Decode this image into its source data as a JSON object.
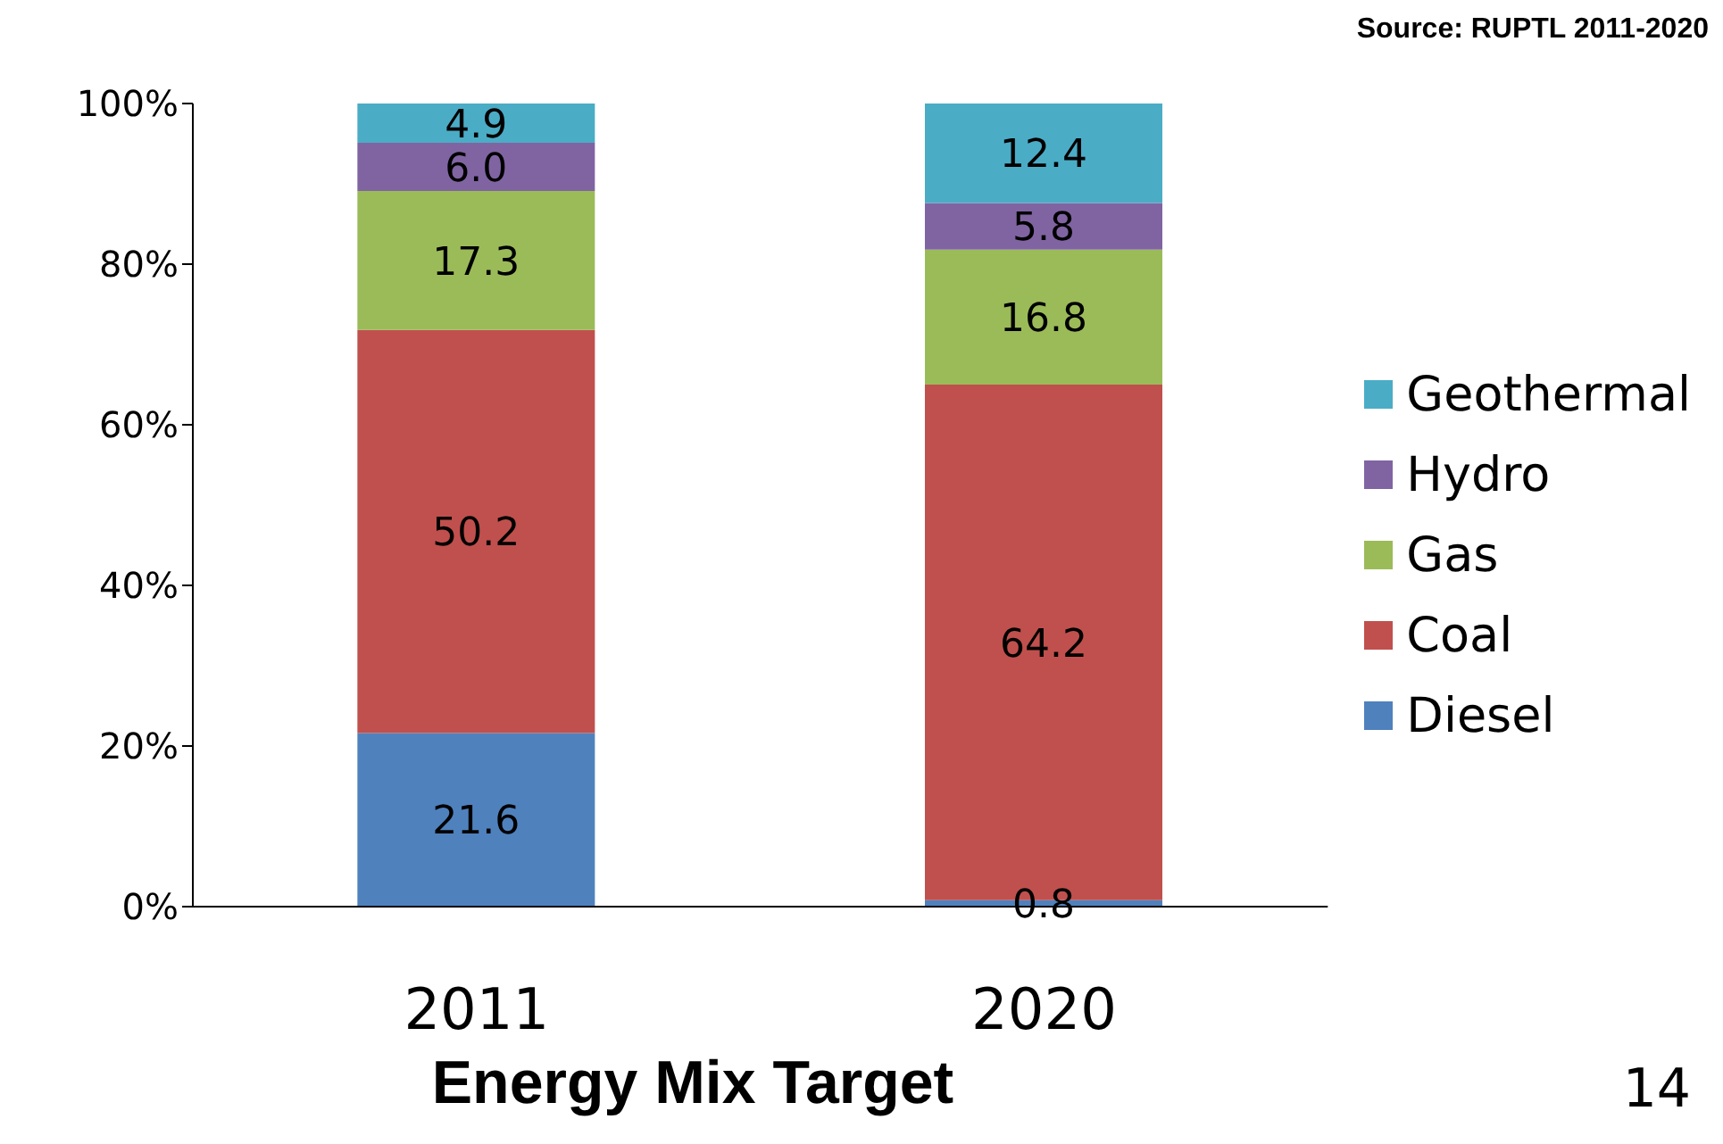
{
  "chart_data": {
    "type": "bar",
    "title": "Energy Mix Target",
    "stacked": true,
    "categories": [
      "2011",
      "2020"
    ],
    "series": [
      {
        "name": "Diesel",
        "color": "#4f81bd",
        "values": [
          21.6,
          0.8
        ],
        "value_labels": [
          "21.6",
          "0.8"
        ]
      },
      {
        "name": "Coal",
        "color": "#c0504d",
        "values": [
          50.2,
          64.2
        ],
        "value_labels": [
          "50.2",
          "64.2"
        ]
      },
      {
        "name": "Gas",
        "color": "#9bbb59",
        "values": [
          17.3,
          16.8
        ],
        "value_labels": [
          "17.3",
          "16.8"
        ]
      },
      {
        "name": "Hydro",
        "color": "#8064a2",
        "values": [
          6.0,
          5.8
        ],
        "value_labels": [
          "6.0",
          "5.8"
        ]
      },
      {
        "name": "Geothermal",
        "color": "#4bacc6",
        "values": [
          4.9,
          12.4
        ],
        "value_labels": [
          "4.9",
          "12.4"
        ]
      }
    ],
    "ylim": [
      0,
      100
    ],
    "yticks": [
      {
        "value": 0,
        "label": "0%"
      },
      {
        "value": 20,
        "label": "20%"
      },
      {
        "value": 40,
        "label": "40%"
      },
      {
        "value": 60,
        "label": "60%"
      },
      {
        "value": 80,
        "label": "80%"
      },
      {
        "value": 100,
        "label": "100%"
      }
    ],
    "grid": false,
    "legend": "right",
    "annotations": [
      "Source: RUPTL 2011-2020",
      "14"
    ]
  }
}
